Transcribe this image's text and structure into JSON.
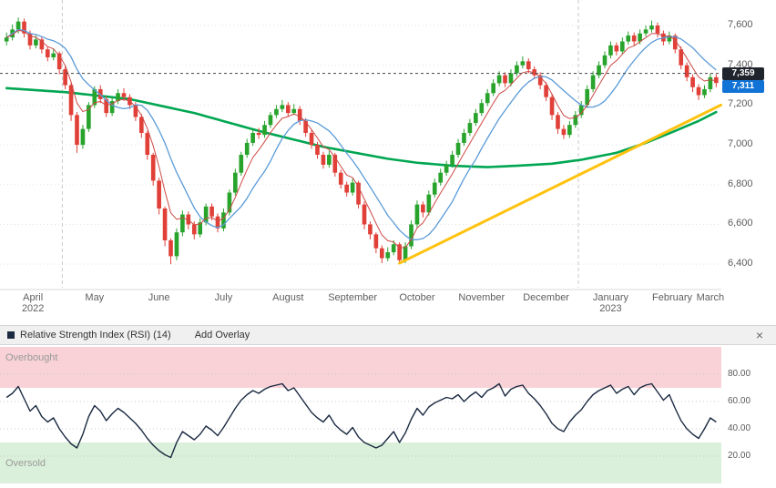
{
  "colors": {
    "candle_up": "#28a32c",
    "candle_down": "#e04038",
    "ma_long": "#00a651",
    "ma_mid": "#5a9bd8",
    "ma_short": "#cc4a46",
    "trendline": "#ffc20e",
    "quote_line": "#444444",
    "grid": "#e3e3e3",
    "year_grid": "#c9c9c9",
    "rsi_line": "#1b2a41",
    "overbought_zone": "#f8d2d6",
    "oversold_zone": "#dbf0db",
    "badge_high_bg": "#20242c",
    "badge_last_bg": "#1273d6"
  },
  "rsi": {
    "title": "Relative Strength Index (RSI) (14)",
    "add_overlay_label": "Add Overlay",
    "close_label": "×",
    "overbought_label": "Overbought",
    "oversold_label": "Oversold"
  },
  "chart_data": [
    {
      "type": "candlestick",
      "title": "Price chart April 2022 - March 2023 with moving averages and rising trendline",
      "ylim": [
        6300,
        7710
      ],
      "y_ticks": [
        {
          "value": 7600,
          "label": "7,600"
        },
        {
          "value": 7400,
          "label": "7,400"
        },
        {
          "value": 7200,
          "label": "7,200"
        },
        {
          "value": 7000,
          "label": "7,000"
        },
        {
          "value": 6800,
          "label": "6,800"
        },
        {
          "value": 6600,
          "label": "6,600"
        },
        {
          "value": 6400,
          "label": "6,400"
        }
      ],
      "price_labels": [
        {
          "value": 7359,
          "label": "7,359",
          "role": "session-high"
        },
        {
          "value": 7311,
          "label": "7,311",
          "role": "last-price"
        }
      ],
      "month_starts": [
        {
          "label": "April",
          "year": "2022",
          "index": 0
        },
        {
          "label": "May",
          "index": 10
        },
        {
          "label": "June",
          "index": 21
        },
        {
          "label": "July",
          "index": 32
        },
        {
          "label": "August",
          "index": 43
        },
        {
          "label": "September",
          "index": 54
        },
        {
          "label": "October",
          "index": 65
        },
        {
          "label": "November",
          "index": 76
        },
        {
          "label": "December",
          "index": 87
        },
        {
          "label": "January",
          "year": "2023",
          "index": 98
        },
        {
          "label": "February",
          "index": 109
        },
        {
          "label": "March",
          "index": 119
        }
      ],
      "v_gridlines": [
        10,
        98
      ],
      "overlays": {
        "ma_long_green": {
          "anchors": [
            [
              0,
              7285
            ],
            [
              10,
              7265
            ],
            [
              21,
              7230
            ],
            [
              32,
              7160
            ],
            [
              43,
              7070
            ],
            [
              54,
              6990
            ],
            [
              65,
              6930
            ],
            [
              70,
              6910
            ],
            [
              76,
              6895
            ],
            [
              82,
              6888
            ],
            [
              87,
              6895
            ],
            [
              93,
              6905
            ],
            [
              98,
              6925
            ],
            [
              104,
              6960
            ],
            [
              109,
              7010
            ],
            [
              114,
              7070
            ],
            [
              118,
              7120
            ],
            [
              121,
              7165
            ]
          ]
        },
        "ma_mid_blue": {
          "type": "sma",
          "period": 10
        },
        "ma_short_red": {
          "type": "ema",
          "period": 5
        },
        "trendline_yellow": {
          "from": [
            67,
            6405
          ],
          "to": [
            121.8,
            7200
          ]
        },
        "quote_line": 7359
      },
      "ohlc": [
        [
          7520,
          7565,
          7500,
          7540
        ],
        [
          7540,
          7605,
          7525,
          7580
        ],
        [
          7580,
          7640,
          7560,
          7620
        ],
        [
          7620,
          7635,
          7540,
          7560
        ],
        [
          7560,
          7575,
          7480,
          7500
        ],
        [
          7500,
          7550,
          7485,
          7530
        ],
        [
          7530,
          7545,
          7460,
          7480
        ],
        [
          7480,
          7495,
          7420,
          7440
        ],
        [
          7440,
          7485,
          7425,
          7460
        ],
        [
          7460,
          7470,
          7355,
          7380
        ],
        [
          7380,
          7395,
          7280,
          7300
        ],
        [
          7300,
          7310,
          7120,
          7150
        ],
        [
          7150,
          7165,
          6960,
          7000
        ],
        [
          7000,
          7100,
          6980,
          7080
        ],
        [
          7080,
          7215,
          7065,
          7200
        ],
        [
          7200,
          7295,
          7185,
          7280
        ],
        [
          7280,
          7300,
          7210,
          7230
        ],
        [
          7230,
          7245,
          7140,
          7160
        ],
        [
          7160,
          7240,
          7145,
          7220
        ],
        [
          7220,
          7280,
          7205,
          7260
        ],
        [
          7260,
          7285,
          7220,
          7240
        ],
        [
          7240,
          7255,
          7180,
          7200
        ],
        [
          7200,
          7215,
          7120,
          7140
        ],
        [
          7140,
          7155,
          7035,
          7060
        ],
        [
          7060,
          7070,
          6925,
          6950
        ],
        [
          6950,
          6960,
          6795,
          6820
        ],
        [
          6820,
          6835,
          6650,
          6680
        ],
        [
          6680,
          6690,
          6490,
          6520
        ],
        [
          6520,
          6530,
          6400,
          6440
        ],
        [
          6440,
          6580,
          6420,
          6560
        ],
        [
          6560,
          6670,
          6540,
          6650
        ],
        [
          6650,
          6665,
          6575,
          6600
        ],
        [
          6600,
          6615,
          6525,
          6550
        ],
        [
          6550,
          6630,
          6535,
          6610
        ],
        [
          6610,
          6705,
          6595,
          6690
        ],
        [
          6690,
          6705,
          6620,
          6640
        ],
        [
          6640,
          6655,
          6560,
          6580
        ],
        [
          6580,
          6680,
          6565,
          6660
        ],
        [
          6660,
          6775,
          6645,
          6760
        ],
        [
          6760,
          6880,
          6745,
          6860
        ],
        [
          6860,
          6965,
          6845,
          6950
        ],
        [
          6950,
          7030,
          6935,
          7010
        ],
        [
          7010,
          7080,
          6995,
          7060
        ],
        [
          7060,
          7085,
          7030,
          7050
        ],
        [
          7050,
          7120,
          7035,
          7100
        ],
        [
          7100,
          7165,
          7085,
          7150
        ],
        [
          7150,
          7200,
          7135,
          7180
        ],
        [
          7180,
          7225,
          7165,
          7200
        ],
        [
          7200,
          7215,
          7140,
          7160
        ],
        [
          7160,
          7205,
          7150,
          7180
        ],
        [
          7180,
          7195,
          7100,
          7120
        ],
        [
          7120,
          7135,
          7040,
          7060
        ],
        [
          7060,
          7075,
          6980,
          7000
        ],
        [
          7000,
          7015,
          6930,
          6950
        ],
        [
          6950,
          6965,
          6880,
          6900
        ],
        [
          6900,
          6970,
          6885,
          6950
        ],
        [
          6950,
          6960,
          6840,
          6860
        ],
        [
          6860,
          6875,
          6780,
          6800
        ],
        [
          6800,
          6815,
          6740,
          6760
        ],
        [
          6760,
          6830,
          6745,
          6810
        ],
        [
          6810,
          6820,
          6680,
          6700
        ],
        [
          6700,
          6715,
          6575,
          6600
        ],
        [
          6600,
          6615,
          6525,
          6550
        ],
        [
          6550,
          6560,
          6455,
          6480
        ],
        [
          6480,
          6495,
          6405,
          6430
        ],
        [
          6430,
          6485,
          6415,
          6460
        ],
        [
          6460,
          6520,
          6445,
          6500
        ],
        [
          6500,
          6510,
          6400,
          6420
        ],
        [
          6420,
          6510,
          6405,
          6490
        ],
        [
          6490,
          6620,
          6475,
          6600
        ],
        [
          6600,
          6720,
          6585,
          6700
        ],
        [
          6700,
          6715,
          6635,
          6660
        ],
        [
          6660,
          6770,
          6645,
          6750
        ],
        [
          6750,
          6830,
          6735,
          6810
        ],
        [
          6810,
          6880,
          6795,
          6860
        ],
        [
          6860,
          6920,
          6845,
          6900
        ],
        [
          6900,
          6970,
          6885,
          6950
        ],
        [
          6950,
          7030,
          6935,
          7010
        ],
        [
          7010,
          7080,
          6995,
          7060
        ],
        [
          7060,
          7130,
          7045,
          7110
        ],
        [
          7110,
          7180,
          7095,
          7160
        ],
        [
          7160,
          7230,
          7145,
          7210
        ],
        [
          7210,
          7280,
          7195,
          7260
        ],
        [
          7260,
          7330,
          7245,
          7310
        ],
        [
          7310,
          7370,
          7295,
          7350
        ],
        [
          7350,
          7365,
          7290,
          7310
        ],
        [
          7310,
          7380,
          7295,
          7360
        ],
        [
          7360,
          7420,
          7345,
          7400
        ],
        [
          7400,
          7445,
          7385,
          7420
        ],
        [
          7420,
          7435,
          7360,
          7380
        ],
        [
          7380,
          7395,
          7330,
          7350
        ],
        [
          7350,
          7365,
          7280,
          7300
        ],
        [
          7300,
          7315,
          7220,
          7240
        ],
        [
          7240,
          7255,
          7125,
          7150
        ],
        [
          7150,
          7165,
          7055,
          7080
        ],
        [
          7080,
          7100,
          7030,
          7050
        ],
        [
          7050,
          7120,
          7035,
          7100
        ],
        [
          7100,
          7170,
          7085,
          7150
        ],
        [
          7150,
          7220,
          7135,
          7200
        ],
        [
          7200,
          7300,
          7185,
          7280
        ],
        [
          7280,
          7370,
          7265,
          7350
        ],
        [
          7350,
          7420,
          7335,
          7400
        ],
        [
          7400,
          7470,
          7385,
          7450
        ],
        [
          7450,
          7520,
          7435,
          7500
        ],
        [
          7500,
          7515,
          7450,
          7470
        ],
        [
          7470,
          7540,
          7455,
          7520
        ],
        [
          7520,
          7570,
          7505,
          7550
        ],
        [
          7550,
          7565,
          7500,
          7520
        ],
        [
          7520,
          7580,
          7505,
          7560
        ],
        [
          7560,
          7600,
          7545,
          7580
        ],
        [
          7580,
          7625,
          7565,
          7600
        ],
        [
          7600,
          7615,
          7540,
          7560
        ],
        [
          7560,
          7575,
          7500,
          7520
        ],
        [
          7520,
          7570,
          7505,
          7550
        ],
        [
          7550,
          7560,
          7460,
          7480
        ],
        [
          7480,
          7495,
          7380,
          7400
        ],
        [
          7400,
          7415,
          7320,
          7340
        ],
        [
          7340,
          7355,
          7265,
          7290
        ],
        [
          7290,
          7305,
          7225,
          7250
        ],
        [
          7250,
          7300,
          7235,
          7280
        ],
        [
          7280,
          7359,
          7265,
          7340
        ],
        [
          7340,
          7355,
          7290,
          7311
        ]
      ],
      "session_high": 7359,
      "last_price": 7311
    },
    {
      "type": "line",
      "name": "RSI(14)",
      "ylim": [
        0,
        100
      ],
      "overbought_level": 70,
      "oversold_level": 30,
      "y_ticks": [
        {
          "value": 80,
          "label": "80.00"
        },
        {
          "value": 60,
          "label": "60.00"
        },
        {
          "value": 40,
          "label": "40.00"
        },
        {
          "value": 20,
          "label": "20.00"
        }
      ],
      "values": [
        63,
        66,
        71,
        62,
        53,
        57,
        49,
        45,
        48,
        40,
        34,
        29,
        26,
        36,
        49,
        57,
        53,
        46,
        51,
        55,
        52,
        48,
        44,
        39,
        33,
        28,
        24,
        21,
        19,
        30,
        38,
        35,
        32,
        36,
        42,
        39,
        35,
        41,
        48,
        55,
        61,
        65,
        68,
        66,
        69,
        71,
        72,
        73,
        68,
        70,
        64,
        58,
        52,
        48,
        45,
        50,
        43,
        39,
        36,
        41,
        34,
        30,
        28,
        26,
        28,
        33,
        38,
        30,
        37,
        47,
        55,
        50,
        56,
        59,
        61,
        63,
        62,
        65,
        60,
        64,
        67,
        63,
        68,
        70,
        73,
        64,
        69,
        71,
        72,
        66,
        62,
        57,
        51,
        44,
        40,
        38,
        45,
        50,
        54,
        60,
        65,
        68,
        70,
        72,
        66,
        69,
        71,
        65,
        70,
        72,
        73,
        67,
        61,
        65,
        55,
        46,
        40,
        36,
        33,
        40,
        48,
        45
      ]
    }
  ]
}
